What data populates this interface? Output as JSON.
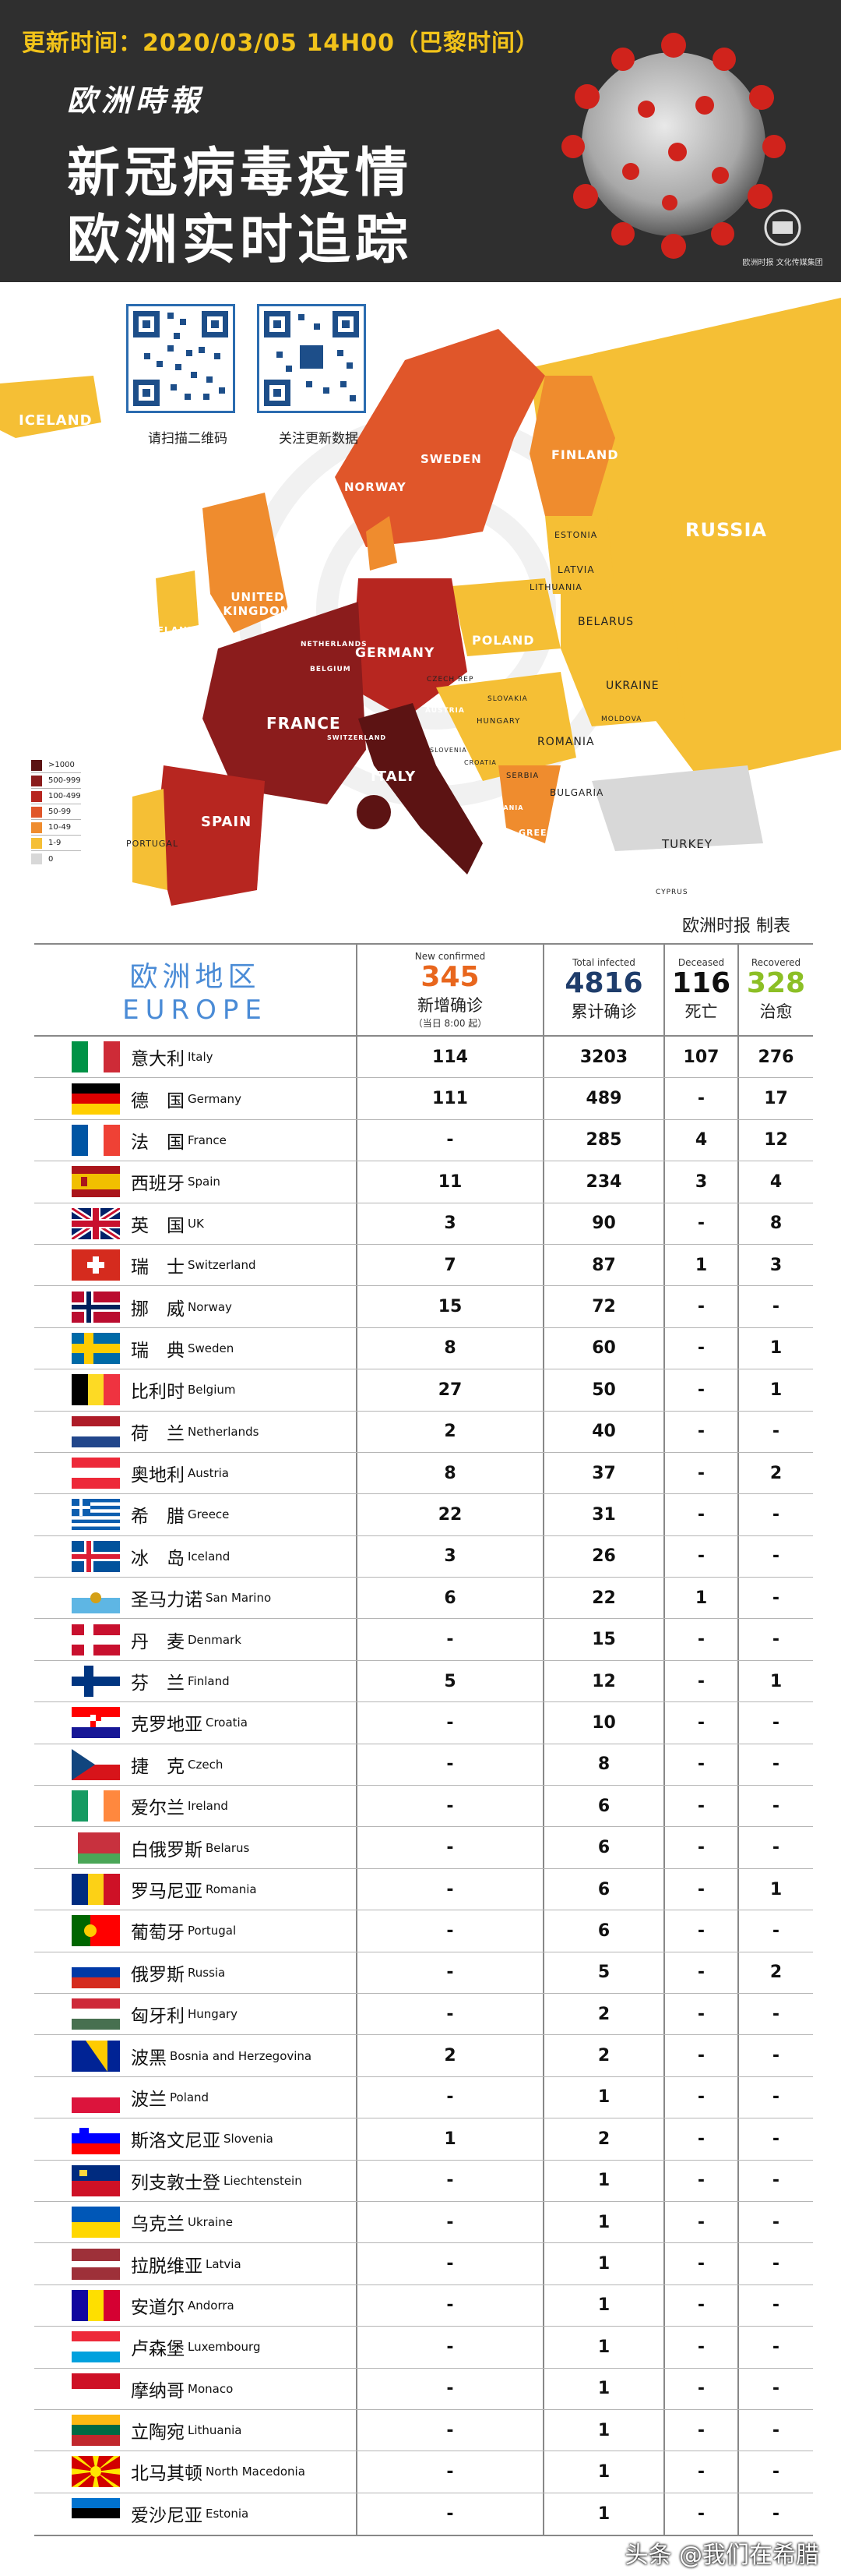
{
  "header": {
    "update_time": "更新时间：2020/03/05  14H00（巴黎时间）",
    "brand": "欧洲時報",
    "title_line1": "新冠病毒疫情",
    "title_line2": "欧洲实时追踪",
    "logo_text": "欧洲时报 文化传媒集团"
  },
  "map": {
    "qr1_label": "请扫描二维码",
    "qr2_label": "关注更新数据",
    "credit": "欧洲时报 制表",
    "countries": [
      "ICELAND",
      "NORWAY",
      "SWEDEN",
      "FINLAND",
      "RUSSIA",
      "ESTONIA",
      "LATVIA",
      "LITHUANIA",
      "UNITED KINGDOM",
      "IRELAND",
      "NETHERLANDS",
      "BELGIUM",
      "GERMANY",
      "POLAND",
      "BELARUS",
      "UKRAINE",
      "CZECH REP",
      "SLOVAKIA",
      "AUSTRIA",
      "HUNGARY",
      "MOLDOVA",
      "ROMANIA",
      "FRANCE",
      "SWITZERLAND",
      "SLOVENIA",
      "CROATIA",
      "SERBIA",
      "BULGARIA",
      "ITALY",
      "ALBANIA",
      "GREECE",
      "SPAIN",
      "PORTUGAL",
      "TURKEY",
      "CYPRUS"
    ],
    "legend": [
      ">1000",
      "500-999",
      "100-499",
      "50-99",
      "10-49",
      "1-9",
      "0"
    ],
    "legend_colors": [
      "#5c1313",
      "#8b1c1c",
      "#b72620",
      "#e0562a",
      "#ef8c2e",
      "#f5bf35",
      "#d8d8d8"
    ]
  },
  "table": {
    "header": {
      "region_cn": "欧洲地区",
      "region_en": "EUROPE",
      "new_en": "New confirmed",
      "new_total": "345",
      "new_cn": "新增确诊",
      "new_sub": "（当日 8:00 起）",
      "total_en": "Total infected",
      "total_total": "4816",
      "total_cn": "累计确诊",
      "dead_en": "Deceased",
      "dead_total": "116",
      "dead_cn": "死亡",
      "rec_en": "Recovered",
      "rec_total": "328",
      "rec_cn": "治愈"
    },
    "rows": [
      {
        "cn": "意大利",
        "en": "Italy",
        "flag": "italy",
        "new": "114",
        "total": "3203",
        "dead": "107",
        "rec": "276"
      },
      {
        "cn": "德　国",
        "en": "Germany",
        "flag": "germany",
        "new": "111",
        "total": "489",
        "dead": "-",
        "rec": "17"
      },
      {
        "cn": "法　国",
        "en": "France",
        "flag": "france",
        "new": "-",
        "total": "285",
        "dead": "4",
        "rec": "12"
      },
      {
        "cn": "西班牙",
        "en": "Spain",
        "flag": "spain",
        "new": "11",
        "total": "234",
        "dead": "3",
        "rec": "4"
      },
      {
        "cn": "英　国",
        "en": "UK",
        "flag": "uk",
        "new": "3",
        "total": "90",
        "dead": "-",
        "rec": "8"
      },
      {
        "cn": "瑞　士",
        "en": "Switzerland",
        "flag": "switzerland",
        "new": "7",
        "total": "87",
        "dead": "1",
        "rec": "3"
      },
      {
        "cn": "挪　威",
        "en": "Norway",
        "flag": "norway",
        "new": "15",
        "total": "72",
        "dead": "-",
        "rec": "-"
      },
      {
        "cn": "瑞　典",
        "en": "Sweden",
        "flag": "sweden",
        "new": "8",
        "total": "60",
        "dead": "-",
        "rec": "1"
      },
      {
        "cn": "比利时",
        "en": "Belgium",
        "flag": "belgium",
        "new": "27",
        "total": "50",
        "dead": "-",
        "rec": "1"
      },
      {
        "cn": "荷　兰",
        "en": "Netherlands",
        "flag": "netherlands",
        "new": "2",
        "total": "40",
        "dead": "-",
        "rec": "-"
      },
      {
        "cn": "奥地利",
        "en": "Austria",
        "flag": "austria",
        "new": "8",
        "total": "37",
        "dead": "-",
        "rec": "2"
      },
      {
        "cn": "希　腊",
        "en": "Greece",
        "flag": "greece",
        "new": "22",
        "total": "31",
        "dead": "-",
        "rec": "-"
      },
      {
        "cn": "冰　岛",
        "en": "Iceland",
        "flag": "iceland",
        "new": "3",
        "total": "26",
        "dead": "-",
        "rec": "-"
      },
      {
        "cn": "圣马力诺",
        "en": "San Marino",
        "flag": "sanmarino",
        "new": "6",
        "total": "22",
        "dead": "1",
        "rec": "-"
      },
      {
        "cn": "丹　麦",
        "en": "Denmark",
        "flag": "denmark",
        "new": "-",
        "total": "15",
        "dead": "-",
        "rec": "-"
      },
      {
        "cn": "芬　兰",
        "en": "Finland",
        "flag": "finland",
        "new": "5",
        "total": "12",
        "dead": "-",
        "rec": "1"
      },
      {
        "cn": "克罗地亚",
        "en": "Croatia",
        "flag": "croatia",
        "new": "-",
        "total": "10",
        "dead": "-",
        "rec": "-"
      },
      {
        "cn": "捷　克",
        "en": "Czech",
        "flag": "czech",
        "new": "-",
        "total": "8",
        "dead": "-",
        "rec": "-"
      },
      {
        "cn": "爱尔兰",
        "en": "Ireland",
        "flag": "ireland",
        "new": "-",
        "total": "6",
        "dead": "-",
        "rec": "-"
      },
      {
        "cn": "白俄罗斯",
        "en": "Belarus",
        "flag": "belarus",
        "new": "-",
        "total": "6",
        "dead": "-",
        "rec": "-"
      },
      {
        "cn": "罗马尼亚",
        "en": "Romania",
        "flag": "romania",
        "new": "-",
        "total": "6",
        "dead": "-",
        "rec": "1"
      },
      {
        "cn": "葡萄牙",
        "en": "Portugal",
        "flag": "portugal",
        "new": "-",
        "total": "6",
        "dead": "-",
        "rec": "-"
      },
      {
        "cn": "俄罗斯",
        "en": "Russia",
        "flag": "russia",
        "new": "-",
        "total": "5",
        "dead": "-",
        "rec": "2"
      },
      {
        "cn": "匈牙利",
        "en": "Hungary",
        "flag": "hungary",
        "new": "-",
        "total": "2",
        "dead": "-",
        "rec": "-"
      },
      {
        "cn": "波黑",
        "en": "Bosnia and Herzegovina",
        "flag": "bosnia",
        "new": "2",
        "total": "2",
        "dead": "-",
        "rec": "-"
      },
      {
        "cn": "波兰",
        "en": "Poland",
        "flag": "poland",
        "new": "-",
        "total": "1",
        "dead": "-",
        "rec": "-"
      },
      {
        "cn": "斯洛文尼亚",
        "en": "Slovenia",
        "flag": "slovenia",
        "new": "1",
        "total": "2",
        "dead": "-",
        "rec": "-"
      },
      {
        "cn": "列支敦士登",
        "en": "Liechtenstein",
        "flag": "liechtenstein",
        "new": "-",
        "total": "1",
        "dead": "-",
        "rec": "-"
      },
      {
        "cn": "乌克兰",
        "en": "Ukraine",
        "flag": "ukraine",
        "new": "-",
        "total": "1",
        "dead": "-",
        "rec": "-"
      },
      {
        "cn": "拉脱维亚",
        "en": "Latvia",
        "flag": "latvia",
        "new": "-",
        "total": "1",
        "dead": "-",
        "rec": "-"
      },
      {
        "cn": "安道尔",
        "en": "Andorra",
        "flag": "andorra",
        "new": "-",
        "total": "1",
        "dead": "-",
        "rec": "-"
      },
      {
        "cn": "卢森堡",
        "en": "Luxembourg",
        "flag": "luxembourg",
        "new": "-",
        "total": "1",
        "dead": "-",
        "rec": "-"
      },
      {
        "cn": "摩纳哥",
        "en": "Monaco",
        "flag": "monaco",
        "new": "-",
        "total": "1",
        "dead": "-",
        "rec": "-"
      },
      {
        "cn": "立陶宛",
        "en": "Lithuania",
        "flag": "lithuania",
        "new": "-",
        "total": "1",
        "dead": "-",
        "rec": "-"
      },
      {
        "cn": "北马其顿",
        "en": "North Macedonia",
        "flag": "macedonia",
        "new": "-",
        "total": "1",
        "dead": "-",
        "rec": "-"
      },
      {
        "cn": "爱沙尼亚",
        "en": "Estonia",
        "flag": "estonia",
        "new": "-",
        "total": "1",
        "dead": "-",
        "rec": "-"
      }
    ]
  },
  "watermark": "头条 @我们在希腊"
}
